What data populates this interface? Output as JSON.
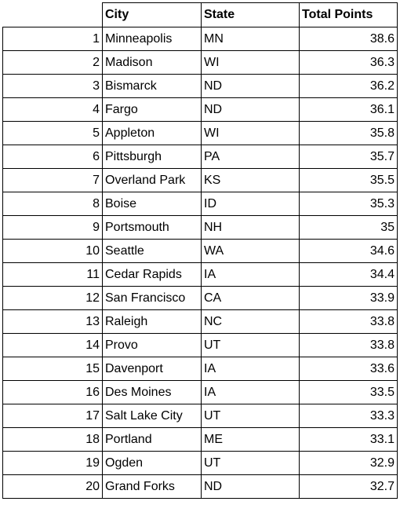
{
  "table": {
    "headers": [
      "",
      "City",
      "State",
      "Total Points"
    ],
    "rows": [
      {
        "rank": "1",
        "city": "Minneapolis",
        "state": "MN",
        "points": "38.6"
      },
      {
        "rank": "2",
        "city": "Madison",
        "state": "WI",
        "points": "36.3"
      },
      {
        "rank": "3",
        "city": "Bismarck",
        "state": "ND",
        "points": "36.2"
      },
      {
        "rank": "4",
        "city": "Fargo",
        "state": "ND",
        "points": "36.1"
      },
      {
        "rank": "5",
        "city": "Appleton",
        "state": "WI",
        "points": "35.8"
      },
      {
        "rank": "6",
        "city": "Pittsburgh",
        "state": "PA",
        "points": "35.7"
      },
      {
        "rank": "7",
        "city": "Overland Park",
        "state": "KS",
        "points": "35.5"
      },
      {
        "rank": "8",
        "city": "Boise",
        "state": "ID",
        "points": "35.3"
      },
      {
        "rank": "9",
        "city": "Portsmouth",
        "state": "NH",
        "points": "35"
      },
      {
        "rank": "10",
        "city": "Seattle",
        "state": "WA",
        "points": "34.6"
      },
      {
        "rank": "11",
        "city": "Cedar Rapids",
        "state": "IA",
        "points": "34.4"
      },
      {
        "rank": "12",
        "city": "San Francisco",
        "state": "CA",
        "points": "33.9"
      },
      {
        "rank": "13",
        "city": "Raleigh",
        "state": "NC",
        "points": "33.8"
      },
      {
        "rank": "14",
        "city": "Provo",
        "state": "UT",
        "points": "33.8"
      },
      {
        "rank": "15",
        "city": "Davenport",
        "state": "IA",
        "points": "33.6"
      },
      {
        "rank": "16",
        "city": "Des Moines",
        "state": "IA",
        "points": "33.5"
      },
      {
        "rank": "17",
        "city": "Salt Lake City",
        "state": "UT",
        "points": "33.3"
      },
      {
        "rank": "18",
        "city": "Portland",
        "state": "ME",
        "points": "33.1"
      },
      {
        "rank": "19",
        "city": "Ogden",
        "state": "UT",
        "points": "32.9"
      },
      {
        "rank": "20",
        "city": "Grand Forks",
        "state": "ND",
        "points": "32.7"
      }
    ]
  }
}
